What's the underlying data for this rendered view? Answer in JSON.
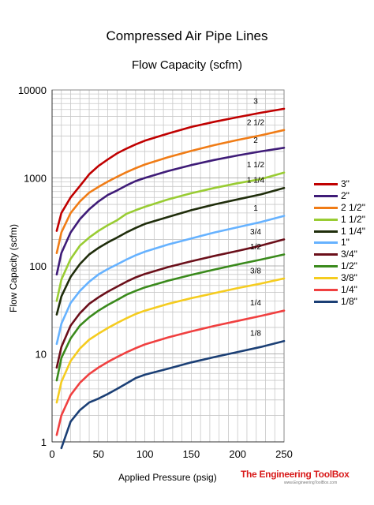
{
  "header": {
    "title": "Compressed Air Pipe Lines",
    "subtitle": "Flow Capacity (scfm)"
  },
  "branding": {
    "name": "The Engineering ToolBox",
    "url": "www.EngineeringToolBox.com"
  },
  "chart_data": {
    "type": "line",
    "title": "Compressed Air Pipe Lines",
    "subtitle": "Flow Capacity (scfm)",
    "xlabel": "Applied Pressure (psig)",
    "ylabel": "Flow Capacity (scfm)",
    "xlim": [
      0,
      250
    ],
    "ylim": [
      1,
      10000
    ],
    "yscale": "log",
    "grid": true,
    "legend_position": "right",
    "x_ticks": [
      0,
      50,
      100,
      150,
      200,
      250
    ],
    "x_tick_labels": [
      "0",
      "50",
      "100",
      "150",
      "200",
      "250"
    ],
    "y_ticks": [
      1,
      10,
      100,
      1000,
      10000
    ],
    "y_tick_labels": [
      "1",
      "10",
      "100",
      "1000",
      "10000"
    ],
    "x": [
      5,
      10,
      20,
      30,
      40,
      50,
      60,
      70,
      80,
      90,
      100,
      125,
      150,
      175,
      200,
      225,
      250
    ],
    "series": [
      {
        "name": "3\"",
        "label": "3",
        "color": "#c00000",
        "values": [
          250,
          400,
          600,
          810,
          1100,
          1370,
          1620,
          1900,
          2150,
          2400,
          2650,
          3200,
          3800,
          4350,
          4900,
          5500,
          6100
        ]
      },
      {
        "name": "2\"",
        "label": "2",
        "color": "#3f1c78",
        "values": [
          80,
          140,
          240,
          340,
          440,
          540,
          640,
          720,
          820,
          920,
          1000,
          1200,
          1400,
          1600,
          1800,
          2000,
          2200
        ]
      },
      {
        "name": "2 1/2\"",
        "label": "2 1/2",
        "color": "#f07c16",
        "values": [
          140,
          240,
          400,
          540,
          680,
          790,
          910,
          1030,
          1160,
          1290,
          1420,
          1720,
          2030,
          2360,
          2700,
          3050,
          3500
        ]
      },
      {
        "name": "1 1/2\"",
        "label": "1 1/2",
        "color": "#99cc33",
        "values": [
          40,
          70,
          120,
          170,
          210,
          250,
          290,
          330,
          390,
          430,
          470,
          570,
          670,
          770,
          870,
          970,
          1150
        ]
      },
      {
        "name": "1 1/4\"",
        "label": "1 1/4",
        "color": "#1f2d0b",
        "values": [
          28,
          45,
          75,
          105,
          135,
          160,
          185,
          210,
          240,
          270,
          300,
          360,
          430,
          500,
          570,
          650,
          770
        ]
      },
      {
        "name": "1\"",
        "label": "1",
        "color": "#66b2ff",
        "values": [
          13,
          22,
          38,
          52,
          66,
          80,
          92,
          104,
          118,
          132,
          145,
          175,
          205,
          240,
          275,
          315,
          370
        ]
      },
      {
        "name": "3/4\"",
        "label": "3/4",
        "color": "#6b0f1a",
        "values": [
          7,
          12,
          21,
          29,
          37,
          44,
          51,
          58,
          66,
          74,
          81,
          97,
          113,
          130,
          148,
          170,
          200
        ]
      },
      {
        "name": "1/2\"",
        "label": "1/2",
        "color": "#3a8a1c",
        "values": [
          5,
          9,
          15,
          21,
          26,
          31,
          36,
          41,
          47,
          52,
          57,
          68,
          79,
          91,
          104,
          118,
          135
        ]
      },
      {
        "name": "3/8\"",
        "label": "3/8",
        "color": "#f5cc1f",
        "values": [
          2.8,
          4.8,
          8.3,
          11.5,
          14.5,
          17,
          19.7,
          22.4,
          25.4,
          28.4,
          31,
          37,
          43,
          49,
          56,
          63,
          72
        ]
      },
      {
        "name": "1/4\"",
        "label": "1/4",
        "color": "#f04040",
        "values": [
          1.2,
          2,
          3.4,
          4.7,
          5.9,
          7,
          8.1,
          9.2,
          10.4,
          11.6,
          12.8,
          15.4,
          18,
          20.8,
          23.7,
          27,
          31
        ]
      },
      {
        "name": "1/8\"",
        "label": "1/8",
        "color": "#1b3f75",
        "values": [
          null,
          0.85,
          1.7,
          2.3,
          2.8,
          3.1,
          3.5,
          4,
          4.6,
          5.3,
          5.8,
          6.8,
          8,
          9.2,
          10.5,
          12,
          14
        ]
      }
    ]
  }
}
